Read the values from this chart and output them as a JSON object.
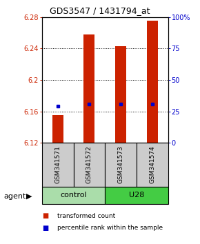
{
  "title": "GDS3547 / 1431794_at",
  "samples": [
    "GSM341571",
    "GSM341572",
    "GSM341573",
    "GSM341574"
  ],
  "bar_bottom": 6.12,
  "bar_tops": [
    6.155,
    6.258,
    6.243,
    6.275
  ],
  "percentile_values": [
    6.167,
    6.169,
    6.169,
    6.169
  ],
  "ylim_left": [
    6.12,
    6.28
  ],
  "yticks_left": [
    6.12,
    6.16,
    6.2,
    6.24,
    6.28
  ],
  "ytick_labels_left": [
    "6.12",
    "6.16",
    "6.2",
    "6.24",
    "6.28"
  ],
  "ylim_right": [
    0,
    100
  ],
  "yticks_right": [
    0,
    25,
    50,
    75,
    100
  ],
  "ytick_labels_right": [
    "0",
    "25",
    "50",
    "75",
    "100%"
  ],
  "bar_color": "#CC2200",
  "marker_color": "#0000CC",
  "bar_width": 0.35,
  "group_info": [
    {
      "start": 0,
      "end": 2,
      "name": "control",
      "color": "#AADDAA"
    },
    {
      "start": 2,
      "end": 4,
      "name": "U28",
      "color": "#44CC44"
    }
  ],
  "agent_label": "agent",
  "legend_items": [
    "transformed count",
    "percentile rank within the sample"
  ],
  "legend_colors": [
    "#CC2200",
    "#0000CC"
  ]
}
